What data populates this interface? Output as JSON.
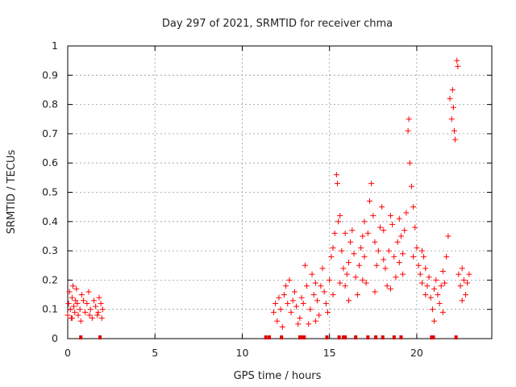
{
  "chart_data": {
    "type": "scatter",
    "title": "Day 297 of 2021, SRMTID for receiver chma",
    "xlabel": "GPS time / hours",
    "ylabel": "SRMTID / TECUs",
    "xlim": [
      0,
      24.3
    ],
    "ylim": [
      0,
      1
    ],
    "xticks": [
      0,
      5,
      10,
      15,
      20
    ],
    "xtick_labels": [
      "0",
      "5",
      "10",
      "15",
      "20"
    ],
    "yticks": [
      0,
      0.1,
      0.2,
      0.3,
      0.4,
      0.5,
      0.6,
      0.7,
      0.8,
      0.9,
      1
    ],
    "ytick_labels": [
      "0",
      "0.1",
      "0.2",
      "0.3",
      "0.4",
      "0.5",
      "0.6",
      "0.7",
      "0.8",
      "0.9",
      "1"
    ],
    "grid": true,
    "marker": "+",
    "color": "#ff0000",
    "series": [
      {
        "name": "SRMTID",
        "points": [
          [
            0.0,
            0.08
          ],
          [
            0.05,
            0.12
          ],
          [
            0.1,
            0.16
          ],
          [
            0.15,
            0.1
          ],
          [
            0.2,
            0.07
          ],
          [
            0.25,
            0.14
          ],
          [
            0.3,
            0.18
          ],
          [
            0.35,
            0.11
          ],
          [
            0.4,
            0.09
          ],
          [
            0.45,
            0.13
          ],
          [
            0.5,
            0.17
          ],
          [
            0.55,
            0.12
          ],
          [
            0.6,
            0.08
          ],
          [
            0.7,
            0.1
          ],
          [
            0.8,
            0.15
          ],
          [
            0.9,
            0.13
          ],
          [
            1.0,
            0.09
          ],
          [
            1.1,
            0.12
          ],
          [
            1.2,
            0.16
          ],
          [
            1.3,
            0.1
          ],
          [
            1.4,
            0.07
          ],
          [
            1.5,
            0.13
          ],
          [
            1.6,
            0.11
          ],
          [
            1.7,
            0.08
          ],
          [
            1.8,
            0.14
          ],
          [
            1.9,
            0.12
          ],
          [
            2.0,
            0.1
          ],
          [
            0.25,
            0.07
          ],
          [
            0.75,
            0.06
          ],
          [
            1.25,
            0.08
          ],
          [
            1.75,
            0.09
          ],
          [
            1.95,
            0.07
          ],
          [
            11.8,
            0.09
          ],
          [
            11.9,
            0.12
          ],
          [
            12.0,
            0.06
          ],
          [
            12.1,
            0.14
          ],
          [
            12.2,
            0.1
          ],
          [
            12.4,
            0.15
          ],
          [
            12.5,
            0.18
          ],
          [
            12.6,
            0.12
          ],
          [
            12.7,
            0.2
          ],
          [
            12.8,
            0.09
          ],
          [
            12.9,
            0.13
          ],
          [
            13.0,
            0.16
          ],
          [
            13.1,
            0.11
          ],
          [
            13.3,
            0.07
          ],
          [
            13.4,
            0.14
          ],
          [
            13.5,
            0.12
          ],
          [
            13.6,
            0.25
          ],
          [
            13.7,
            0.18
          ],
          [
            13.8,
            0.05
          ],
          [
            13.9,
            0.1
          ],
          [
            14.0,
            0.22
          ],
          [
            14.1,
            0.15
          ],
          [
            14.2,
            0.19
          ],
          [
            14.3,
            0.13
          ],
          [
            14.4,
            0.08
          ],
          [
            14.5,
            0.18
          ],
          [
            14.6,
            0.24
          ],
          [
            14.7,
            0.16
          ],
          [
            14.8,
            0.12
          ],
          [
            14.9,
            0.09
          ],
          [
            15.0,
            0.2
          ],
          [
            15.1,
            0.28
          ],
          [
            15.2,
            0.31
          ],
          [
            15.3,
            0.36
          ],
          [
            15.4,
            0.56
          ],
          [
            15.45,
            0.53
          ],
          [
            15.5,
            0.4
          ],
          [
            15.6,
            0.42
          ],
          [
            15.7,
            0.3
          ],
          [
            15.8,
            0.24
          ],
          [
            15.9,
            0.18
          ],
          [
            16.0,
            0.22
          ],
          [
            16.1,
            0.26
          ],
          [
            16.2,
            0.33
          ],
          [
            16.3,
            0.37
          ],
          [
            16.4,
            0.29
          ],
          [
            16.5,
            0.21
          ],
          [
            16.6,
            0.15
          ],
          [
            16.7,
            0.25
          ],
          [
            16.8,
            0.31
          ],
          [
            16.9,
            0.35
          ],
          [
            17.0,
            0.28
          ],
          [
            17.1,
            0.19
          ],
          [
            17.2,
            0.36
          ],
          [
            17.3,
            0.47
          ],
          [
            17.4,
            0.53
          ],
          [
            17.5,
            0.42
          ],
          [
            17.6,
            0.33
          ],
          [
            17.7,
            0.25
          ],
          [
            17.8,
            0.3
          ],
          [
            17.9,
            0.38
          ],
          [
            18.0,
            0.45
          ],
          [
            18.1,
            0.37
          ],
          [
            18.2,
            0.24
          ],
          [
            18.3,
            0.18
          ],
          [
            18.4,
            0.3
          ],
          [
            18.5,
            0.42
          ],
          [
            18.6,
            0.39
          ],
          [
            18.7,
            0.28
          ],
          [
            18.8,
            0.21
          ],
          [
            18.9,
            0.33
          ],
          [
            19.0,
            0.41
          ],
          [
            19.1,
            0.35
          ],
          [
            19.2,
            0.29
          ],
          [
            19.3,
            0.37
          ],
          [
            19.4,
            0.43
          ],
          [
            19.5,
            0.71
          ],
          [
            19.55,
            0.75
          ],
          [
            19.6,
            0.6
          ],
          [
            19.7,
            0.52
          ],
          [
            19.8,
            0.45
          ],
          [
            19.9,
            0.38
          ],
          [
            20.0,
            0.31
          ],
          [
            20.1,
            0.25
          ],
          [
            20.2,
            0.22
          ],
          [
            20.3,
            0.19
          ],
          [
            20.4,
            0.28
          ],
          [
            20.5,
            0.24
          ],
          [
            20.6,
            0.18
          ],
          [
            20.7,
            0.21
          ],
          [
            20.8,
            0.14
          ],
          [
            20.9,
            0.1
          ],
          [
            21.0,
            0.17
          ],
          [
            21.1,
            0.2
          ],
          [
            21.2,
            0.15
          ],
          [
            21.3,
            0.12
          ],
          [
            21.4,
            0.18
          ],
          [
            21.5,
            0.23
          ],
          [
            21.6,
            0.19
          ],
          [
            21.7,
            0.28
          ],
          [
            21.8,
            0.35
          ],
          [
            21.9,
            0.82
          ],
          [
            22.0,
            0.75
          ],
          [
            22.05,
            0.85
          ],
          [
            22.1,
            0.79
          ],
          [
            22.15,
            0.71
          ],
          [
            22.2,
            0.68
          ],
          [
            22.3,
            0.95
          ],
          [
            22.35,
            0.93
          ],
          [
            22.4,
            0.22
          ],
          [
            22.5,
            0.18
          ],
          [
            22.6,
            0.24
          ],
          [
            22.7,
            0.2
          ],
          [
            22.8,
            0.15
          ],
          [
            22.9,
            0.19
          ],
          [
            23.0,
            0.22
          ],
          [
            15.2,
            0.15
          ],
          [
            15.6,
            0.19
          ],
          [
            16.1,
            0.13
          ],
          [
            16.9,
            0.2
          ],
          [
            17.6,
            0.16
          ],
          [
            18.5,
            0.17
          ],
          [
            19.2,
            0.22
          ],
          [
            19.8,
            0.28
          ],
          [
            20.5,
            0.15
          ],
          [
            21.5,
            0.09
          ],
          [
            22.6,
            0.13
          ],
          [
            12.3,
            0.04
          ],
          [
            13.2,
            0.05
          ],
          [
            14.2,
            0.06
          ],
          [
            15.9,
            0.36
          ],
          [
            17.0,
            0.4
          ],
          [
            18.1,
            0.27
          ],
          [
            19.0,
            0.26
          ],
          [
            20.3,
            0.3
          ],
          [
            21.0,
            0.06
          ]
        ]
      }
    ],
    "flag_x": [
      0.75,
      1.85,
      11.35,
      11.55,
      12.25,
      13.3,
      13.45,
      13.55,
      14.85,
      15.55,
      15.8,
      15.9,
      16.5,
      17.2,
      17.65,
      18.05,
      18.7,
      19.1,
      20.85,
      20.95,
      22.25
    ]
  }
}
